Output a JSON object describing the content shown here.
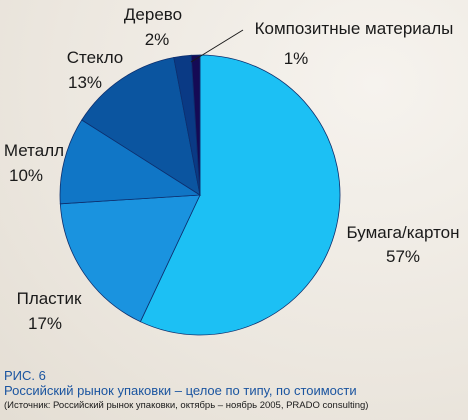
{
  "chart_data": {
    "type": "pie",
    "slices": [
      {
        "name": "Бумага/картон",
        "value": 57,
        "value_label": "57%",
        "color": "#1cc0f4"
      },
      {
        "name": "Пластик",
        "value": 17,
        "value_label": "17%",
        "color": "#1a93df"
      },
      {
        "name": "Металл",
        "value": 10,
        "value_label": "10%",
        "color": "#1076c6"
      },
      {
        "name": "Стекло",
        "value": 13,
        "value_label": "13%",
        "color": "#0b55a0"
      },
      {
        "name": "Дерево",
        "value": 2,
        "value_label": "2%",
        "color": "#0a3a85"
      },
      {
        "name": "Композитные материалы",
        "value": 1,
        "value_label": "1%",
        "color": "#150a55"
      }
    ]
  },
  "caption": {
    "figure_label": "РИС. 6",
    "title": "Российский рынок упаковки – целое по типу, по стоимости",
    "source": "(Источник: Российский рынок упаковки, октябрь – ноябрь 2005, PRADO consulting)"
  }
}
